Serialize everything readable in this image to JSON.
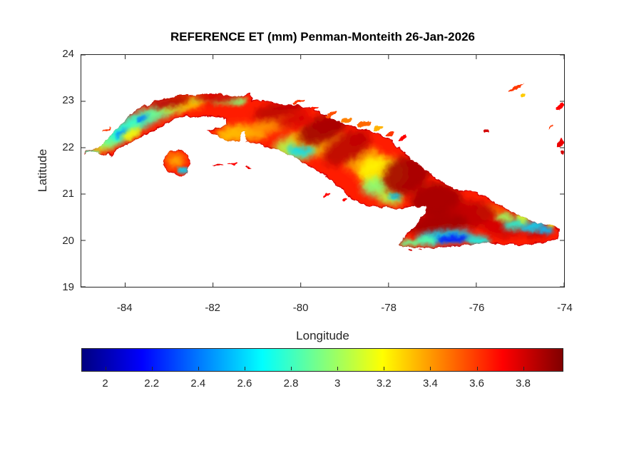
{
  "figure": {
    "background": "#ffffff"
  },
  "title": "REFERENCE ET (mm) Penman-Monteith 26-Jan-2026",
  "axes": {
    "xlabel": "Longitude",
    "ylabel": "Latitude",
    "xlim": [
      -85,
      -74
    ],
    "ylim": [
      19,
      24
    ],
    "xticks": [
      -84,
      -82,
      -80,
      -78,
      -76,
      -74
    ],
    "yticks": [
      24,
      23,
      22,
      21,
      20,
      19
    ],
    "axis_color": "#262626",
    "box": true
  },
  "colorbar": {
    "location": "south",
    "colormap": "jet",
    "vmin": 1.9,
    "vmax": 3.97,
    "ticks": [
      2,
      2.2,
      2.4,
      2.6,
      2.8,
      3,
      3.2,
      3.4,
      3.6,
      3.8
    ]
  },
  "chart_data": {
    "type": "heatmap",
    "title": "REFERENCE ET (mm) Penman-Monteith 26-Jan-2026",
    "xlabel": "Longitude",
    "ylabel": "Latitude",
    "region": "Cuba",
    "variable": "Reference evapotranspiration (mm)",
    "value_range": [
      1.9,
      3.97
    ],
    "base_value": 3.65,
    "coast_rim_value": 3.8,
    "patch_format": "[lon, lat, rx_deg, ry_deg, rotation_deg, value]",
    "mainland_outline": [
      [
        -84.95,
        21.84
      ],
      [
        -84.9,
        21.95
      ],
      [
        -84.62,
        21.98
      ],
      [
        -84.45,
        22.12
      ],
      [
        -84.28,
        22.32
      ],
      [
        -84.1,
        22.5
      ],
      [
        -83.88,
        22.72
      ],
      [
        -83.6,
        22.88
      ],
      [
        -83.3,
        23.0
      ],
      [
        -82.9,
        23.1
      ],
      [
        -82.5,
        23.14
      ],
      [
        -82.1,
        23.17
      ],
      [
        -81.8,
        23.16
      ],
      [
        -81.57,
        23.08
      ],
      [
        -81.35,
        23.11
      ],
      [
        -81.17,
        23.2
      ],
      [
        -81.1,
        23.04
      ],
      [
        -80.85,
        23.02
      ],
      [
        -80.55,
        22.96
      ],
      [
        -80.2,
        22.92
      ],
      [
        -79.9,
        22.88
      ],
      [
        -79.6,
        22.78
      ],
      [
        -79.28,
        22.62
      ],
      [
        -78.95,
        22.5
      ],
      [
        -78.6,
        22.4
      ],
      [
        -78.25,
        22.3
      ],
      [
        -77.95,
        22.17
      ],
      [
        -77.7,
        21.95
      ],
      [
        -77.48,
        21.75
      ],
      [
        -77.25,
        21.6
      ],
      [
        -77.0,
        21.4
      ],
      [
        -76.7,
        21.22
      ],
      [
        -76.4,
        21.08
      ],
      [
        -76.1,
        21.06
      ],
      [
        -75.8,
        20.95
      ],
      [
        -75.55,
        20.8
      ],
      [
        -75.25,
        20.65
      ],
      [
        -74.95,
        20.5
      ],
      [
        -74.6,
        20.37
      ],
      [
        -74.3,
        20.32
      ],
      [
        -74.1,
        20.25
      ],
      [
        -74.15,
        20.05
      ],
      [
        -74.4,
        19.96
      ],
      [
        -74.7,
        19.94
      ],
      [
        -75.0,
        19.9
      ],
      [
        -75.35,
        19.9
      ],
      [
        -75.7,
        19.95
      ],
      [
        -76.1,
        19.9
      ],
      [
        -76.5,
        19.87
      ],
      [
        -76.9,
        19.84
      ],
      [
        -77.3,
        19.84
      ],
      [
        -77.6,
        19.86
      ],
      [
        -77.74,
        19.92
      ],
      [
        -77.6,
        20.12
      ],
      [
        -77.42,
        20.28
      ],
      [
        -77.27,
        20.45
      ],
      [
        -77.16,
        20.6
      ],
      [
        -77.12,
        20.73
      ],
      [
        -77.45,
        20.73
      ],
      [
        -77.8,
        20.68
      ],
      [
        -78.15,
        20.71
      ],
      [
        -78.5,
        20.75
      ],
      [
        -78.8,
        20.87
      ],
      [
        -79.05,
        21.07
      ],
      [
        -79.3,
        21.3
      ],
      [
        -79.6,
        21.48
      ],
      [
        -79.9,
        21.65
      ],
      [
        -80.2,
        21.83
      ],
      [
        -80.55,
        21.96
      ],
      [
        -80.85,
        22.06
      ],
      [
        -81.1,
        22.1
      ],
      [
        -81.22,
        22.12
      ],
      [
        -81.27,
        22.35
      ],
      [
        -81.35,
        22.35
      ],
      [
        -81.4,
        22.12
      ],
      [
        -81.75,
        22.18
      ],
      [
        -82.05,
        22.3
      ],
      [
        -82.13,
        22.38
      ],
      [
        -81.85,
        22.44
      ],
      [
        -81.68,
        22.48
      ],
      [
        -81.7,
        22.62
      ],
      [
        -82.0,
        22.66
      ],
      [
        -82.4,
        22.66
      ],
      [
        -82.75,
        22.68
      ],
      [
        -83.1,
        22.5
      ],
      [
        -83.45,
        22.32
      ],
      [
        -83.75,
        22.17
      ],
      [
        -84.0,
        22.05
      ],
      [
        -84.18,
        21.96
      ],
      [
        -84.3,
        21.78
      ],
      [
        -84.38,
        21.88
      ],
      [
        -84.52,
        21.83
      ],
      [
        -84.65,
        21.9
      ],
      [
        -84.82,
        21.93
      ]
    ],
    "isla_outline": [
      [
        -83.12,
        21.6
      ],
      [
        -83.1,
        21.82
      ],
      [
        -82.95,
        21.94
      ],
      [
        -82.77,
        21.96
      ],
      [
        -82.6,
        21.88
      ],
      [
        -82.52,
        21.68
      ],
      [
        -82.57,
        21.48
      ],
      [
        -82.72,
        21.4
      ],
      [
        -82.9,
        21.43
      ],
      [
        -83.03,
        21.49
      ]
    ],
    "value_patches": [
      [
        -84.75,
        21.9,
        0.18,
        0.06,
        0,
        2.8
      ],
      [
        -84.45,
        22.08,
        0.3,
        0.12,
        -25,
        3.25
      ],
      [
        -84.25,
        22.22,
        0.4,
        0.16,
        -35,
        2.9
      ],
      [
        -84.0,
        22.4,
        0.45,
        0.18,
        -32,
        2.75
      ],
      [
        -84.05,
        22.33,
        0.2,
        0.07,
        -32,
        2.45
      ],
      [
        -83.62,
        22.6,
        0.45,
        0.17,
        -25,
        2.8
      ],
      [
        -83.58,
        22.64,
        0.2,
        0.06,
        -25,
        2.4
      ],
      [
        -83.2,
        22.78,
        0.4,
        0.15,
        -18,
        2.9
      ],
      [
        -82.85,
        22.9,
        0.35,
        0.13,
        -12,
        3.1
      ],
      [
        -82.5,
        22.95,
        0.3,
        0.12,
        -8,
        3.3
      ],
      [
        -83.85,
        22.3,
        0.25,
        0.1,
        -30,
        3.2
      ],
      [
        -82.3,
        23.05,
        0.25,
        0.08,
        0,
        3.1
      ],
      [
        -81.8,
        23.02,
        0.28,
        0.09,
        0,
        3.0
      ],
      [
        -81.45,
        23.0,
        0.22,
        0.08,
        0,
        2.95
      ],
      [
        -81.55,
        22.3,
        0.4,
        0.18,
        -10,
        3.3
      ],
      [
        -81.1,
        22.32,
        0.35,
        0.16,
        0,
        3.35
      ],
      [
        -80.6,
        22.55,
        0.5,
        0.2,
        -15,
        3.4
      ],
      [
        -79.3,
        22.05,
        0.4,
        0.25,
        -20,
        3.35
      ],
      [
        -80.1,
        22.0,
        0.5,
        0.25,
        0,
        3.05
      ],
      [
        -80.0,
        21.95,
        0.3,
        0.14,
        0,
        2.6
      ],
      [
        -79.9,
        22.2,
        0.35,
        0.18,
        0,
        3.35
      ],
      [
        -78.6,
        21.75,
        0.45,
        0.28,
        0,
        3.35
      ],
      [
        -78.15,
        21.45,
        0.55,
        0.35,
        0,
        3.2
      ],
      [
        -78.3,
        21.15,
        0.3,
        0.2,
        0,
        2.95
      ],
      [
        -77.95,
        20.95,
        0.3,
        0.18,
        0,
        3.05
      ],
      [
        -77.85,
        20.95,
        0.13,
        0.07,
        0,
        2.6
      ],
      [
        -75.7,
        20.6,
        0.3,
        0.15,
        0,
        3.4
      ],
      [
        -82.95,
        22.98,
        0.45,
        0.12,
        -10,
        3.85
      ],
      [
        -81.95,
        23.08,
        0.5,
        0.12,
        0,
        3.8
      ],
      [
        -80.5,
        22.8,
        0.6,
        0.18,
        -12,
        3.85
      ],
      [
        -79.5,
        22.4,
        0.6,
        0.28,
        -25,
        3.9
      ],
      [
        -78.95,
        22.0,
        0.6,
        0.3,
        -30,
        3.85
      ],
      [
        -77.6,
        21.4,
        0.55,
        0.4,
        -20,
        3.9
      ],
      [
        -76.9,
        20.85,
        0.6,
        0.4,
        0,
        3.9
      ],
      [
        -76.1,
        20.55,
        0.55,
        0.3,
        0,
        3.85
      ],
      [
        -75.35,
        20.3,
        0.5,
        0.25,
        0,
        3.8
      ],
      [
        -76.9,
        20.35,
        0.7,
        0.22,
        -5,
        3.9
      ],
      [
        -74.6,
        20.15,
        0.3,
        0.13,
        -10,
        3.8
      ],
      [
        -80.15,
        22.6,
        0.4,
        0.15,
        -15,
        3.8
      ],
      [
        -76.7,
        20.08,
        0.65,
        0.14,
        -4,
        2.6
      ],
      [
        -76.55,
        20.03,
        0.38,
        0.08,
        -4,
        2.2
      ],
      [
        -77.15,
        20.0,
        0.25,
        0.1,
        0,
        2.85
      ],
      [
        -75.95,
        20.0,
        0.28,
        0.1,
        0,
        2.7
      ],
      [
        -77.5,
        19.95,
        0.22,
        0.08,
        0,
        2.9
      ],
      [
        -75.1,
        20.35,
        0.3,
        0.12,
        -10,
        2.75
      ],
      [
        -74.7,
        20.3,
        0.28,
        0.1,
        -15,
        2.6
      ],
      [
        -74.42,
        20.22,
        0.18,
        0.08,
        0,
        2.55
      ],
      [
        -75.35,
        20.5,
        0.2,
        0.1,
        0,
        3.0
      ],
      [
        -74.95,
        20.48,
        0.15,
        0.08,
        0,
        3.1
      ],
      [
        -74.28,
        20.33,
        0.1,
        0.05,
        0,
        3.2
      ],
      [
        -82.85,
        21.72,
        0.2,
        0.16,
        0,
        3.35
      ],
      [
        -82.68,
        21.52,
        0.14,
        0.05,
        0,
        2.6
      ],
      [
        -82.95,
        21.85,
        0.13,
        0.07,
        0,
        3.5
      ]
    ],
    "cays": [
      [
        -84.42,
        22.4,
        0.1,
        0.025,
        -30,
        3.6
      ],
      [
        -81.9,
        21.62,
        0.13,
        0.025,
        0,
        3.75
      ],
      [
        -81.55,
        21.66,
        0.1,
        0.022,
        0,
        3.7
      ],
      [
        -81.2,
        21.58,
        0.07,
        0.02,
        0,
        3.75
      ],
      [
        -80.05,
        22.98,
        0.14,
        0.03,
        -15,
        3.6
      ],
      [
        -79.7,
        22.85,
        0.12,
        0.03,
        -20,
        3.65
      ],
      [
        -79.3,
        22.72,
        0.16,
        0.04,
        -25,
        3.55
      ],
      [
        -78.95,
        22.6,
        0.13,
        0.045,
        -20,
        3.45
      ],
      [
        -78.55,
        22.52,
        0.17,
        0.06,
        -15,
        3.5
      ],
      [
        -78.25,
        22.42,
        0.1,
        0.045,
        -20,
        3.35
      ],
      [
        -77.95,
        22.3,
        0.1,
        0.05,
        -30,
        3.6
      ],
      [
        -77.68,
        22.2,
        0.09,
        0.04,
        -40,
        3.7
      ],
      [
        -75.76,
        22.36,
        0.05,
        0.03,
        0,
        3.8
      ],
      [
        -75.1,
        23.3,
        0.2,
        0.03,
        -20,
        3.6
      ],
      [
        -74.93,
        23.12,
        0.06,
        0.05,
        0,
        3.3
      ],
      [
        -74.1,
        22.88,
        0.09,
        0.05,
        -40,
        3.7
      ],
      [
        -74.3,
        22.44,
        0.07,
        0.015,
        -45,
        3.6
      ],
      [
        -74.08,
        22.1,
        0.1,
        0.06,
        -60,
        3.75
      ],
      [
        -74.03,
        21.9,
        0.05,
        0.04,
        0,
        3.8
      ],
      [
        -79.4,
        20.98,
        0.07,
        0.02,
        -20,
        3.7
      ],
      [
        -79.0,
        20.88,
        0.06,
        0.02,
        -20,
        3.7
      ],
      [
        -77.5,
        19.8,
        0.05,
        0.015,
        0,
        3.8
      ],
      [
        -77.28,
        19.78,
        0.04,
        0.012,
        0,
        3.8
      ]
    ]
  }
}
